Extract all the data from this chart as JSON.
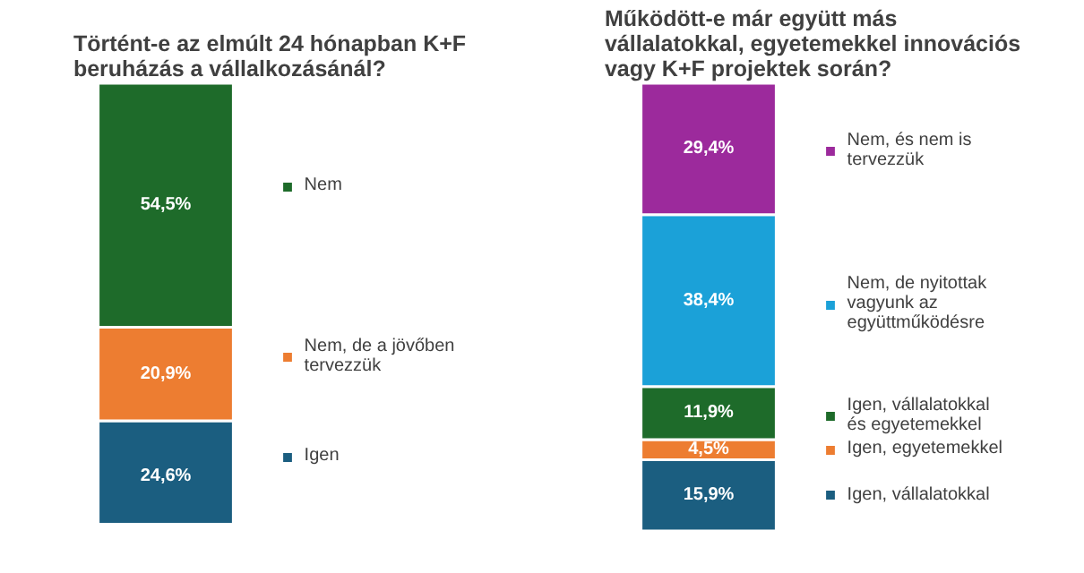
{
  "chart_data": [
    {
      "type": "bar",
      "title": "Történt-e az elmúlt 24 hónapban K+F\nberuházás a vállalkozásánál?",
      "categories": [
        null
      ],
      "stacked": true,
      "legend": "right",
      "grid": false,
      "tick_labels": false,
      "series": [
        {
          "name": "Igen",
          "color": "#1b5e80",
          "values": [
            24.6
          ],
          "value_labels": [
            "24,6%"
          ]
        },
        {
          "name": "Nem, de a jövőben tervezzük",
          "color": "#ed7d31",
          "values": [
            20.9
          ],
          "value_labels": [
            "20,9%"
          ]
        },
        {
          "name": "Nem",
          "color": "#1e6b2a",
          "values": [
            54.5
          ],
          "value_labels": [
            "54,5%"
          ]
        }
      ]
    },
    {
      "type": "bar",
      "title": "Működött-e már együtt más\nvállalatokkal, egyetemekkel innovációs\nvagy K+F projektek során?",
      "categories": [
        null
      ],
      "stacked": true,
      "legend": "right",
      "grid": false,
      "tick_labels": false,
      "series": [
        {
          "name": "Igen, vállalatokkal",
          "color": "#1b5e80",
          "values": [
            15.9
          ],
          "value_labels": [
            "15,9%"
          ]
        },
        {
          "name": "Igen, egyetemekkel",
          "color": "#ed7d31",
          "values": [
            4.5
          ],
          "value_labels": [
            "4,5%"
          ]
        },
        {
          "name": "Igen, vállalatokkal és egyetemekkel",
          "color": "#1e6b2a",
          "values": [
            11.9
          ],
          "value_labels": [
            "11,9%"
          ]
        },
        {
          "name": "Nem, de nyitottak vagyunk az együttműködésre",
          "color": "#1ba1d8",
          "values": [
            38.4
          ],
          "value_labels": [
            "38,4%"
          ]
        },
        {
          "name": "Nem, és nem is tervezzük",
          "color": "#9c2a9c",
          "values": [
            29.4
          ],
          "value_labels": [
            "29,4%"
          ]
        }
      ]
    }
  ]
}
